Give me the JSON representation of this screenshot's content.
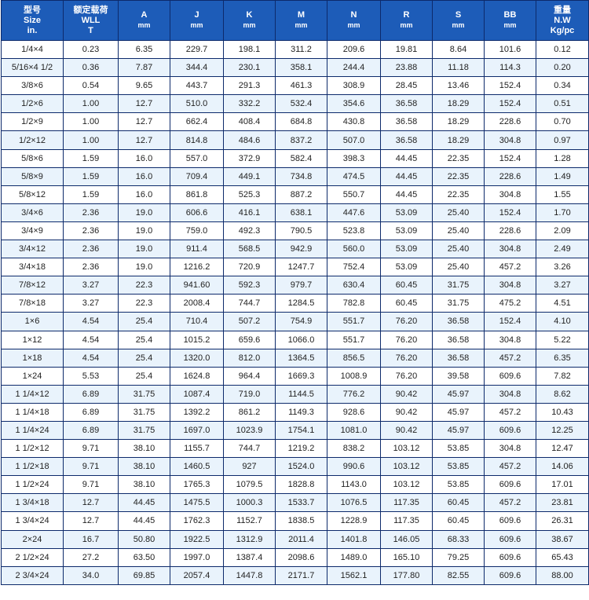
{
  "table": {
    "headers": [
      {
        "lines": [
          "型号",
          "Size",
          "in."
        ]
      },
      {
        "lines": [
          "额定载荷",
          "WLL",
          "T"
        ]
      },
      {
        "lines": [
          "A",
          "mm"
        ]
      },
      {
        "lines": [
          "J",
          "mm"
        ]
      },
      {
        "lines": [
          "K",
          "mm"
        ]
      },
      {
        "lines": [
          "M",
          "mm"
        ]
      },
      {
        "lines": [
          "N",
          "mm"
        ]
      },
      {
        "lines": [
          "R",
          "mm"
        ]
      },
      {
        "lines": [
          "S",
          "mm"
        ]
      },
      {
        "lines": [
          "BB",
          "mm"
        ]
      },
      {
        "lines": [
          "重量",
          "N.W",
          "Kg/pc"
        ]
      }
    ],
    "rows": [
      [
        "1/4×4",
        "0.23",
        "6.35",
        "229.7",
        "198.1",
        "311.2",
        "209.6",
        "19.81",
        "8.64",
        "101.6",
        "0.12"
      ],
      [
        "5/16×4 1/2",
        "0.36",
        "7.87",
        "344.4",
        "230.1",
        "358.1",
        "244.4",
        "23.88",
        "11.18",
        "114.3",
        "0.20"
      ],
      [
        "3/8×6",
        "0.54",
        "9.65",
        "443.7",
        "291.3",
        "461.3",
        "308.9",
        "28.45",
        "13.46",
        "152.4",
        "0.34"
      ],
      [
        "1/2×6",
        "1.00",
        "12.7",
        "510.0",
        "332.2",
        "532.4",
        "354.6",
        "36.58",
        "18.29",
        "152.4",
        "0.51"
      ],
      [
        "1/2×9",
        "1.00",
        "12.7",
        "662.4",
        "408.4",
        "684.8",
        "430.8",
        "36.58",
        "18.29",
        "228.6",
        "0.70"
      ],
      [
        "1/2×12",
        "1.00",
        "12.7",
        "814.8",
        "484.6",
        "837.2",
        "507.0",
        "36.58",
        "18.29",
        "304.8",
        "0.97"
      ],
      [
        "5/8×6",
        "1.59",
        "16.0",
        "557.0",
        "372.9",
        "582.4",
        "398.3",
        "44.45",
        "22.35",
        "152.4",
        "1.28"
      ],
      [
        "5/8×9",
        "1.59",
        "16.0",
        "709.4",
        "449.1",
        "734.8",
        "474.5",
        "44.45",
        "22.35",
        "228.6",
        "1.49"
      ],
      [
        "5/8×12",
        "1.59",
        "16.0",
        "861.8",
        "525.3",
        "887.2",
        "550.7",
        "44.45",
        "22.35",
        "304.8",
        "1.55"
      ],
      [
        "3/4×6",
        "2.36",
        "19.0",
        "606.6",
        "416.1",
        "638.1",
        "447.6",
        "53.09",
        "25.40",
        "152.4",
        "1.70"
      ],
      [
        "3/4×9",
        "2.36",
        "19.0",
        "759.0",
        "492.3",
        "790.5",
        "523.8",
        "53.09",
        "25.40",
        "228.6",
        "2.09"
      ],
      [
        "3/4×12",
        "2.36",
        "19.0",
        "911.4",
        "568.5",
        "942.9",
        "560.0",
        "53.09",
        "25.40",
        "304.8",
        "2.49"
      ],
      [
        "3/4×18",
        "2.36",
        "19.0",
        "1216.2",
        "720.9",
        "1247.7",
        "752.4",
        "53.09",
        "25.40",
        "457.2",
        "3.26"
      ],
      [
        "7/8×12",
        "3.27",
        "22.3",
        "941.60",
        "592.3",
        "979.7",
        "630.4",
        "60.45",
        "31.75",
        "304.8",
        "3.27"
      ],
      [
        "7/8×18",
        "3.27",
        "22.3",
        "2008.4",
        "744.7",
        "1284.5",
        "782.8",
        "60.45",
        "31.75",
        "475.2",
        "4.51"
      ],
      [
        "1×6",
        "4.54",
        "25.4",
        "710.4",
        "507.2",
        "754.9",
        "551.7",
        "76.20",
        "36.58",
        "152.4",
        "4.10"
      ],
      [
        "1×12",
        "4.54",
        "25.4",
        "1015.2",
        "659.6",
        "1066.0",
        "551.7",
        "76.20",
        "36.58",
        "304.8",
        "5.22"
      ],
      [
        "1×18",
        "4.54",
        "25.4",
        "1320.0",
        "812.0",
        "1364.5",
        "856.5",
        "76.20",
        "36.58",
        "457.2",
        "6.35"
      ],
      [
        "1×24",
        "5.53",
        "25.4",
        "1624.8",
        "964.4",
        "1669.3",
        "1008.9",
        "76.20",
        "39.58",
        "609.6",
        "7.82"
      ],
      [
        "1 1/4×12",
        "6.89",
        "31.75",
        "1087.4",
        "719.0",
        "1144.5",
        "776.2",
        "90.42",
        "45.97",
        "304.8",
        "8.62"
      ],
      [
        "1 1/4×18",
        "6.89",
        "31.75",
        "1392.2",
        "861.2",
        "1149.3",
        "928.6",
        "90.42",
        "45.97",
        "457.2",
        "10.43"
      ],
      [
        "1 1/4×24",
        "6.89",
        "31.75",
        "1697.0",
        "1023.9",
        "1754.1",
        "1081.0",
        "90.42",
        "45.97",
        "609.6",
        "12.25"
      ],
      [
        "1 1/2×12",
        "9.71",
        "38.10",
        "1155.7",
        "744.7",
        "1219.2",
        "838.2",
        "103.12",
        "53.85",
        "304.8",
        "12.47"
      ],
      [
        "1 1/2×18",
        "9.71",
        "38.10",
        "1460.5",
        "927",
        "1524.0",
        "990.6",
        "103.12",
        "53.85",
        "457.2",
        "14.06"
      ],
      [
        "1 1/2×24",
        "9.71",
        "38.10",
        "1765.3",
        "1079.5",
        "1828.8",
        "1143.0",
        "103.12",
        "53.85",
        "609.6",
        "17.01"
      ],
      [
        "1 3/4×18",
        "12.7",
        "44.45",
        "1475.5",
        "1000.3",
        "1533.7",
        "1076.5",
        "117.35",
        "60.45",
        "457.2",
        "23.81"
      ],
      [
        "1 3/4×24",
        "12.7",
        "44.45",
        "1762.3",
        "1152.7",
        "1838.5",
        "1228.9",
        "117.35",
        "60.45",
        "609.6",
        "26.31"
      ],
      [
        "2×24",
        "16.7",
        "50.80",
        "1922.5",
        "1312.9",
        "2011.4",
        "1401.8",
        "146.05",
        "68.33",
        "609.6",
        "38.67"
      ],
      [
        "2 1/2×24",
        "27.2",
        "63.50",
        "1997.0",
        "1387.4",
        "2098.6",
        "1489.0",
        "165.10",
        "79.25",
        "609.6",
        "65.43"
      ],
      [
        "2 3/4×24",
        "34.0",
        "69.85",
        "2057.4",
        "1447.8",
        "2171.7",
        "1562.1",
        "177.80",
        "82.55",
        "609.6",
        "88.00"
      ]
    ]
  },
  "colors": {
    "header_bg": "#1d5cb8",
    "header_text": "#ffffff",
    "border": "#0d2a6b",
    "alt_row_bg": "#e9f3fc"
  }
}
